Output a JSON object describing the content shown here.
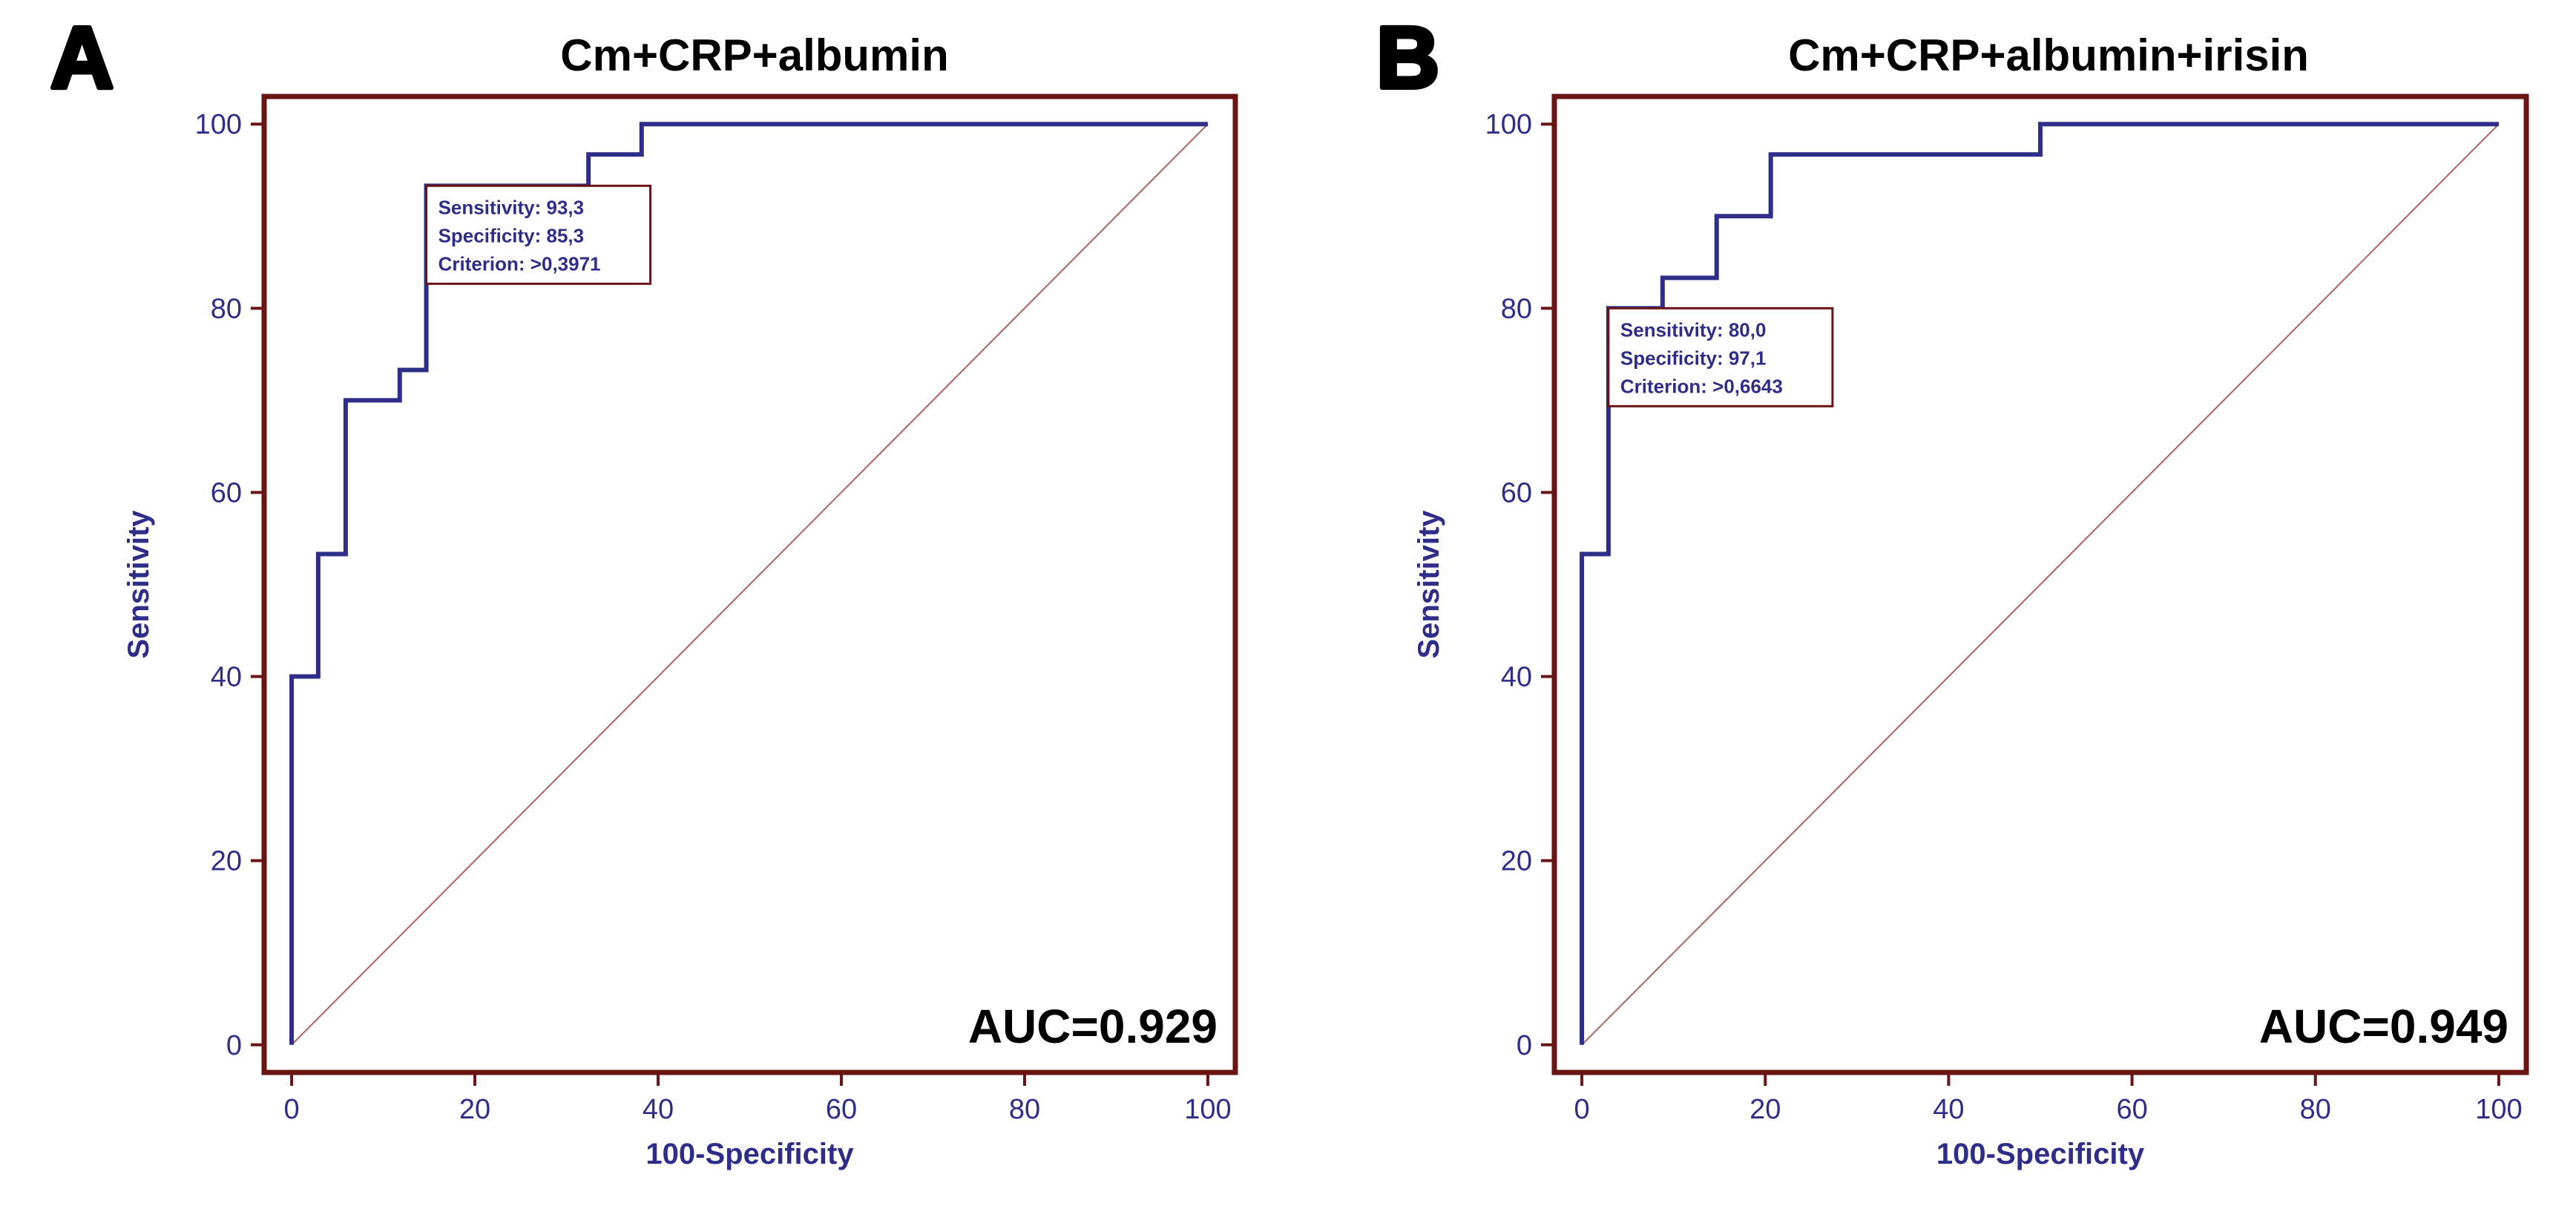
{
  "colors": {
    "frame": "#6b1414",
    "curve": "#2e2e8a",
    "axis_text": "#2e2e8a",
    "diagonal": "#b06060",
    "title": "#000000"
  },
  "panels": [
    {
      "letter": "A",
      "annotation": {
        "sensitivity": "Sensitivity: 93,3",
        "specificity": "Specificity: 85,3",
        "criterion": "Criterion: >0,3971"
      },
      "auc_label": "AUC=0.929"
    },
    {
      "letter": "B",
      "annotation": {
        "sensitivity": "Sensitivity: 80,0",
        "specificity": "Specificity: 97,1",
        "criterion": "Criterion: >0,6643"
      },
      "auc_label": "AUC=0.949"
    }
  ],
  "chart_data": [
    {
      "type": "line",
      "title": "Cm+CRP+albumin",
      "xlabel": "100-Specificity",
      "ylabel": "Sensitivity",
      "xlim": [
        -3,
        103
      ],
      "ylim": [
        -3,
        103
      ],
      "xticks": [
        0,
        20,
        40,
        60,
        80,
        100
      ],
      "yticks": [
        0,
        20,
        40,
        60,
        80,
        100
      ],
      "grid": false,
      "series": [
        {
          "name": "ROC curve",
          "x": [
            0,
            0,
            2.9,
            2.9,
            5.9,
            5.9,
            11.8,
            11.8,
            14.7,
            14.7,
            32.4,
            32.4,
            38.2,
            38.2,
            100
          ],
          "y": [
            0,
            40,
            40,
            53.3,
            53.3,
            70,
            70,
            73.3,
            73.3,
            93.3,
            93.3,
            96.7,
            96.7,
            100,
            100
          ]
        },
        {
          "name": "Reference line",
          "x": [
            0,
            100
          ],
          "y": [
            0,
            100
          ]
        }
      ],
      "annotation_point": {
        "x": 14.7,
        "y": 93.3
      },
      "auc": 0.929
    },
    {
      "type": "line",
      "title": "Cm+CRP+albumin+irisin",
      "xlabel": "100-Specificity",
      "ylabel": "Sensitivity",
      "xlim": [
        -3,
        103
      ],
      "ylim": [
        -3,
        103
      ],
      "xticks": [
        0,
        20,
        40,
        60,
        80,
        100
      ],
      "yticks": [
        0,
        20,
        40,
        60,
        80,
        100
      ],
      "grid": false,
      "series": [
        {
          "name": "ROC curve",
          "x": [
            0,
            0,
            2.9,
            2.9,
            8.8,
            8.8,
            14.7,
            14.7,
            20.6,
            20.6,
            50,
            50,
            100
          ],
          "y": [
            0,
            53.3,
            53.3,
            80,
            80,
            83.3,
            83.3,
            90,
            90,
            96.7,
            96.7,
            100,
            100
          ]
        },
        {
          "name": "Reference line",
          "x": [
            0,
            100
          ],
          "y": [
            0,
            100
          ]
        }
      ],
      "annotation_point": {
        "x": 2.9,
        "y": 80
      },
      "auc": 0.949
    }
  ]
}
